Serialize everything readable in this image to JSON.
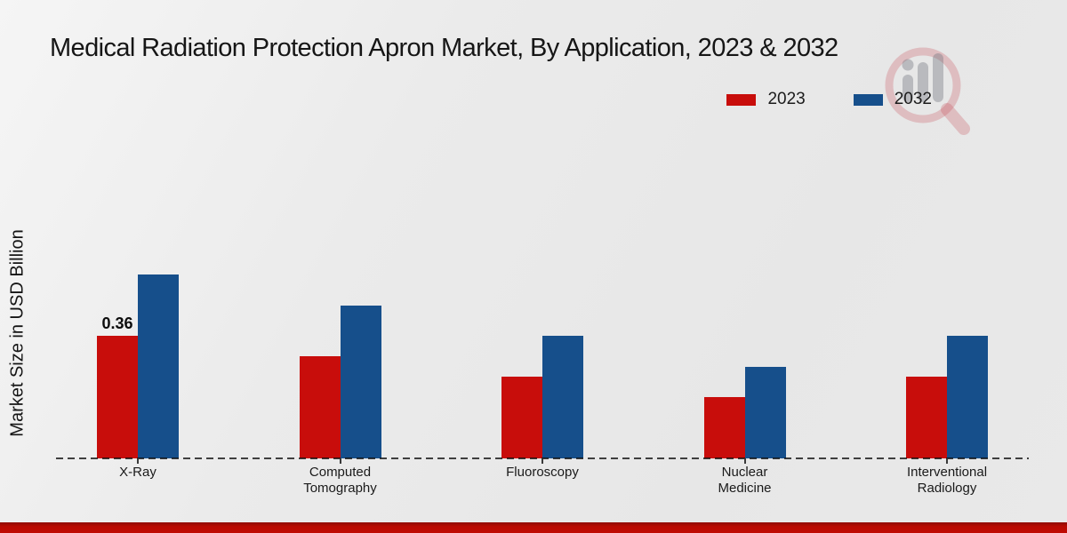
{
  "chart_data": {
    "type": "bar",
    "title": "Medical Radiation Protection Apron Market, By Application, 2023 & 2032",
    "ylabel": "Market Size in USD Billion",
    "xlabel": "",
    "unit": "USD Billion",
    "categories": [
      "X-Ray",
      "Computed Tomography",
      "Fluoroscopy",
      "Nuclear Medicine",
      "Interventional Radiology"
    ],
    "category_lines": [
      [
        "X-Ray"
      ],
      [
        "Computed",
        "Tomography"
      ],
      [
        "Fluoroscopy"
      ],
      [
        "Nuclear",
        "Medicine"
      ],
      [
        "Interventional",
        "Radiology"
      ]
    ],
    "series": [
      {
        "name": "2023",
        "color": "#c80d0b",
        "values": [
          0.36,
          0.3,
          0.24,
          0.18,
          0.24
        ],
        "value_labels": [
          "0.36",
          "",
          "",
          "",
          ""
        ]
      },
      {
        "name": "2032",
        "color": "#164f8b",
        "values": [
          0.54,
          0.45,
          0.36,
          0.27,
          0.36
        ],
        "value_labels": [
          "",
          "",
          "",
          "",
          ""
        ]
      }
    ],
    "ylim": [
      0,
      0.6
    ],
    "grid": false,
    "legend_position": "top-right",
    "baseline_style": "dashed"
  },
  "watermark": {
    "name": "magnifier-bar-chart-logo",
    "ring_color": "rgba(196,70,80,0.26)",
    "bars_color": "rgba(110,112,124,0.38)"
  },
  "footer": {
    "accent_color": "#b90a02"
  }
}
